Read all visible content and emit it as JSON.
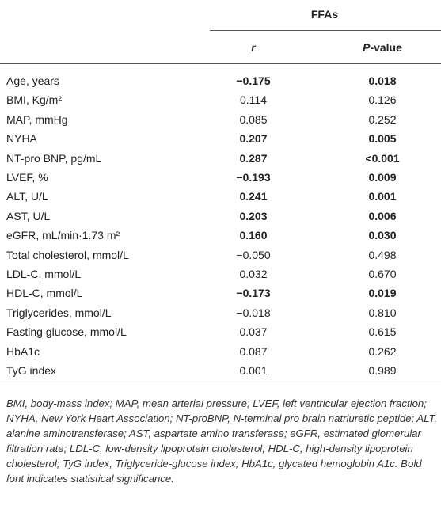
{
  "table": {
    "group_header": "FFAs",
    "columns": [
      [
        "r"
      ],
      [
        "P",
        "-value"
      ]
    ],
    "rows": [
      {
        "cells": [
          "Age, years",
          "−0.175",
          "0.018"
        ],
        "bold": true
      },
      {
        "cells": [
          "BMI, Kg/m²",
          "0.114",
          "0.126"
        ],
        "bold": false
      },
      {
        "cells": [
          "MAP, mmHg",
          "0.085",
          "0.252"
        ],
        "bold": false
      },
      {
        "cells": [
          "NYHA",
          "0.207",
          "0.005"
        ],
        "bold": true
      },
      {
        "cells": [
          "NT-pro BNP, pg/mL",
          "0.287",
          "<0.001"
        ],
        "bold": true
      },
      {
        "cells": [
          "LVEF, %",
          "−0.193",
          "0.009"
        ],
        "bold": true
      },
      {
        "cells": [
          "ALT, U/L",
          "0.241",
          "0.001"
        ],
        "bold": true
      },
      {
        "cells": [
          "AST, U/L",
          "0.203",
          "0.006"
        ],
        "bold": true
      },
      {
        "cells": [
          "eGFR, mL/min·1.73 m²",
          "0.160",
          "0.030"
        ],
        "bold": true
      },
      {
        "cells": [
          "Total cholesterol, mmol/L",
          "−0.050",
          "0.498"
        ],
        "bold": false
      },
      {
        "cells": [
          "LDL-C, mmol/L",
          "0.032",
          "0.670"
        ],
        "bold": false
      },
      {
        "cells": [
          "HDL-C, mmol/L",
          "−0.173",
          "0.019"
        ],
        "bold": true
      },
      {
        "cells": [
          "Triglycerides, mmol/L",
          "−0.018",
          "0.810"
        ],
        "bold": false
      },
      {
        "cells": [
          "Fasting glucose, mmol/L",
          "0.037",
          "0.615"
        ],
        "bold": false
      },
      {
        "cells": [
          "HbA1c",
          "0.087",
          "0.262"
        ],
        "bold": false
      },
      {
        "cells": [
          "TyG index",
          "0.001",
          "0.989"
        ],
        "bold": false
      }
    ],
    "footnote": "BMI, body-mass index; MAP, mean arterial pressure; LVEF, left ventricular ejection fraction; NYHA, New York Heart Association; NT-proBNP, N-terminal pro brain natriuretic peptide; ALT, alanine aminotransferase; AST, aspartate amino transferase; eGFR, estimated glomerular filtration rate; LDL-C, low-density lipoprotein cholesterol; HDL-C, high-density lipoprotein cholesterol; TyG index, Triglyceride-glucose index; HbA1c, glycated hemoglobin A1c. Bold font indicates statistical significance."
  }
}
